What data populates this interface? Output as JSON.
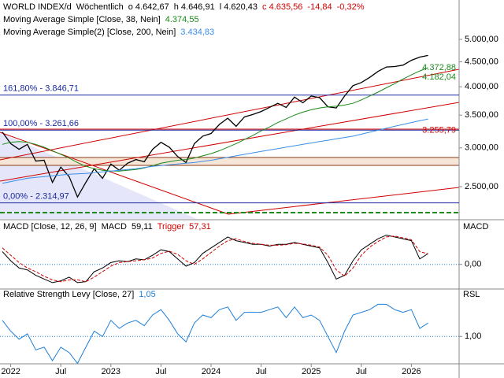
{
  "chart_data": [
    {
      "type": "line",
      "log_scale": true,
      "header_items": [
        {
          "text": "Wöchentlich",
          "color": "#000000"
        },
        {
          "text": "o 4.642,67",
          "color": "#000000"
        },
        {
          "text": "h 4.646,91",
          "color": "#000000"
        },
        {
          "text": "l 4.620,43",
          "color": "#000000"
        },
        {
          "text": "c 4.635,56",
          "color": "#d00000"
        },
        {
          "text": "-14,84",
          "color": "#d00000"
        },
        {
          "text": "-0,32%",
          "color": "#d00000"
        }
      ],
      "categories": [
        null,
        "2022",
        null,
        null,
        null,
        null,
        null,
        "Jul",
        null,
        null,
        null,
        null,
        null,
        "2023",
        null,
        null,
        null,
        null,
        null,
        "Jul",
        null,
        null,
        null,
        null,
        null,
        "2024",
        null,
        null,
        null,
        null,
        null,
        "Jul",
        null,
        null,
        null,
        null,
        null,
        "2025",
        null,
        null,
        null,
        null,
        null,
        "Jul",
        null,
        null,
        null,
        null,
        null,
        "2026",
        null,
        null
      ],
      "series": [
        {
          "name": "WORLD INDEX/d",
          "color": "#000000",
          "values": [
            3232,
            3060,
            2980,
            3050,
            2820,
            2830,
            2550,
            2740,
            2620,
            2380,
            2550,
            2720,
            2600,
            2780,
            2700,
            2790,
            2840,
            2810,
            2980,
            3080,
            3010,
            2880,
            2800,
            3060,
            3170,
            3210,
            3350,
            3450,
            3320,
            3470,
            3510,
            3560,
            3630,
            3700,
            3630,
            3810,
            3710,
            3830,
            3800,
            3640,
            3620,
            3830,
            4020,
            4080,
            4180,
            4300,
            4390,
            4400,
            4430,
            4530,
            4600,
            4635.56
          ]
        },
        {
          "name": "Moving Average Simple [Close, 38, Nein]",
          "color": "#1a8a1a",
          "last_label": "4.374,55",
          "values": [
            3050,
            3080,
            3090,
            3080,
            3050,
            3010,
            2960,
            2910,
            2860,
            2800,
            2750,
            2720,
            2700,
            2690,
            2690,
            2700,
            2710,
            2730,
            2760,
            2790,
            2810,
            2830,
            2840,
            2860,
            2890,
            2920,
            2960,
            3010,
            3060,
            3120,
            3180,
            3250,
            3310,
            3380,
            3440,
            3500,
            3550,
            3590,
            3620,
            3640,
            3650,
            3670,
            3700,
            3760,
            3830,
            3900,
            3980,
            4060,
            4150,
            4230,
            4310,
            4374.55
          ]
        },
        {
          "name": "Moving Average Simple(2) [Close, 200, Nein]",
          "color": "#3a8ee6",
          "last_label": "3.434,83",
          "values": [
            2540,
            2560,
            2580,
            2600,
            2610,
            2620,
            2630,
            2640,
            2650,
            2655,
            2660,
            2670,
            2680,
            2690,
            2700,
            2710,
            2720,
            2735,
            2750,
            2760,
            2770,
            2780,
            2790,
            2800,
            2815,
            2830,
            2850,
            2870,
            2890,
            2910,
            2930,
            2950,
            2970,
            2990,
            3010,
            3030,
            3050,
            3070,
            3090,
            3110,
            3130,
            3150,
            3170,
            3200,
            3230,
            3260,
            3290,
            3320,
            3350,
            3380,
            3410,
            3434.83
          ]
        }
      ],
      "levels": [
        {
          "value": 3846.71,
          "label": "161,80% - 3.846,71"
        },
        {
          "value": 3261.66,
          "label": "100,00% - 3.261,66"
        },
        {
          "value": 2314.97,
          "label": "0,00% - 2.314,97"
        }
      ],
      "annotations": [
        {
          "value": 3255.79,
          "label": "3.255,79",
          "color": "#d00000"
        },
        {
          "value": 4182.04,
          "label": "4.182,04",
          "color": "#1a8a1a"
        },
        {
          "value": 4372.88,
          "label": "4.372,88",
          "color": "#1a8a1a"
        }
      ],
      "ylim": [
        2163,
        5930
      ],
      "yticks": [
        {
          "value": 2500,
          "label": "2.500,00"
        },
        {
          "value": 3000,
          "label": "3.000,00"
        },
        {
          "value": 3500,
          "label": "3.500,00"
        },
        {
          "value": 4000,
          "label": "4.000,00"
        },
        {
          "value": 4500,
          "label": "4.500,00"
        },
        {
          "value": 5000,
          "label": "5.000,00"
        }
      ]
    },
    {
      "type": "line",
      "title": "MACD [Close, 12, 26, 9]",
      "axis_label": "MACD",
      "series": [
        {
          "name": "MACD",
          "color": "#000000",
          "last_label": "59,11",
          "values": [
            70,
            20,
            -20,
            -30,
            -60,
            -80,
            -100,
            -90,
            -70,
            -100,
            -95,
            -40,
            -20,
            10,
            20,
            15,
            30,
            25,
            50,
            80,
            70,
            30,
            -10,
            10,
            60,
            90,
            120,
            150,
            130,
            120,
            110,
            110,
            100,
            110,
            110,
            120,
            110,
            100,
            90,
            10,
            -80,
            -60,
            20,
            80,
            110,
            140,
            160,
            150,
            140,
            130,
            30,
            59.11
          ]
        },
        {
          "name": "Trigger",
          "color": "#d00000",
          "dashed": true,
          "last_label": "57,31",
          "values": [
            90,
            50,
            10,
            -20,
            -40,
            -65,
            -85,
            -95,
            -85,
            -85,
            -95,
            -70,
            -40,
            -10,
            10,
            15,
            20,
            25,
            35,
            60,
            72,
            55,
            20,
            0,
            30,
            65,
            100,
            130,
            140,
            125,
            115,
            110,
            105,
            105,
            108,
            115,
            112,
            105,
            95,
            50,
            -30,
            -65,
            -20,
            50,
            95,
            125,
            150,
            155,
            145,
            135,
            70,
            57.31
          ]
        }
      ],
      "ylim": [
        -122,
        223
      ],
      "yticks": [
        {
          "value": 0,
          "label": "0,00"
        }
      ]
    },
    {
      "type": "line",
      "title": "Relative Strength Levy [Close, 27]",
      "axis_label": "RSL",
      "series": [
        {
          "name": "RSL",
          "color": "#1e7fd6",
          "last_label": "1,05",
          "values": [
            1.06,
            1.02,
            0.99,
            1.01,
            0.95,
            0.96,
            0.91,
            0.96,
            0.94,
            0.9,
            0.96,
            1.02,
            1.0,
            1.06,
            1.03,
            1.05,
            1.06,
            1.04,
            1.08,
            1.1,
            1.06,
            1.01,
            0.98,
            1.05,
            1.08,
            1.07,
            1.1,
            1.11,
            1.06,
            1.09,
            1.09,
            1.09,
            1.1,
            1.11,
            1.07,
            1.11,
            1.07,
            1.08,
            1.06,
            1.0,
            0.94,
            1.02,
            1.08,
            1.09,
            1.1,
            1.12,
            1.12,
            1.1,
            1.09,
            1.1,
            1.03,
            1.05
          ]
        }
      ],
      "ylim": [
        0.904,
        1.168
      ],
      "yticks": [
        {
          "value": 1.0,
          "label": "1,00"
        }
      ]
    }
  ]
}
